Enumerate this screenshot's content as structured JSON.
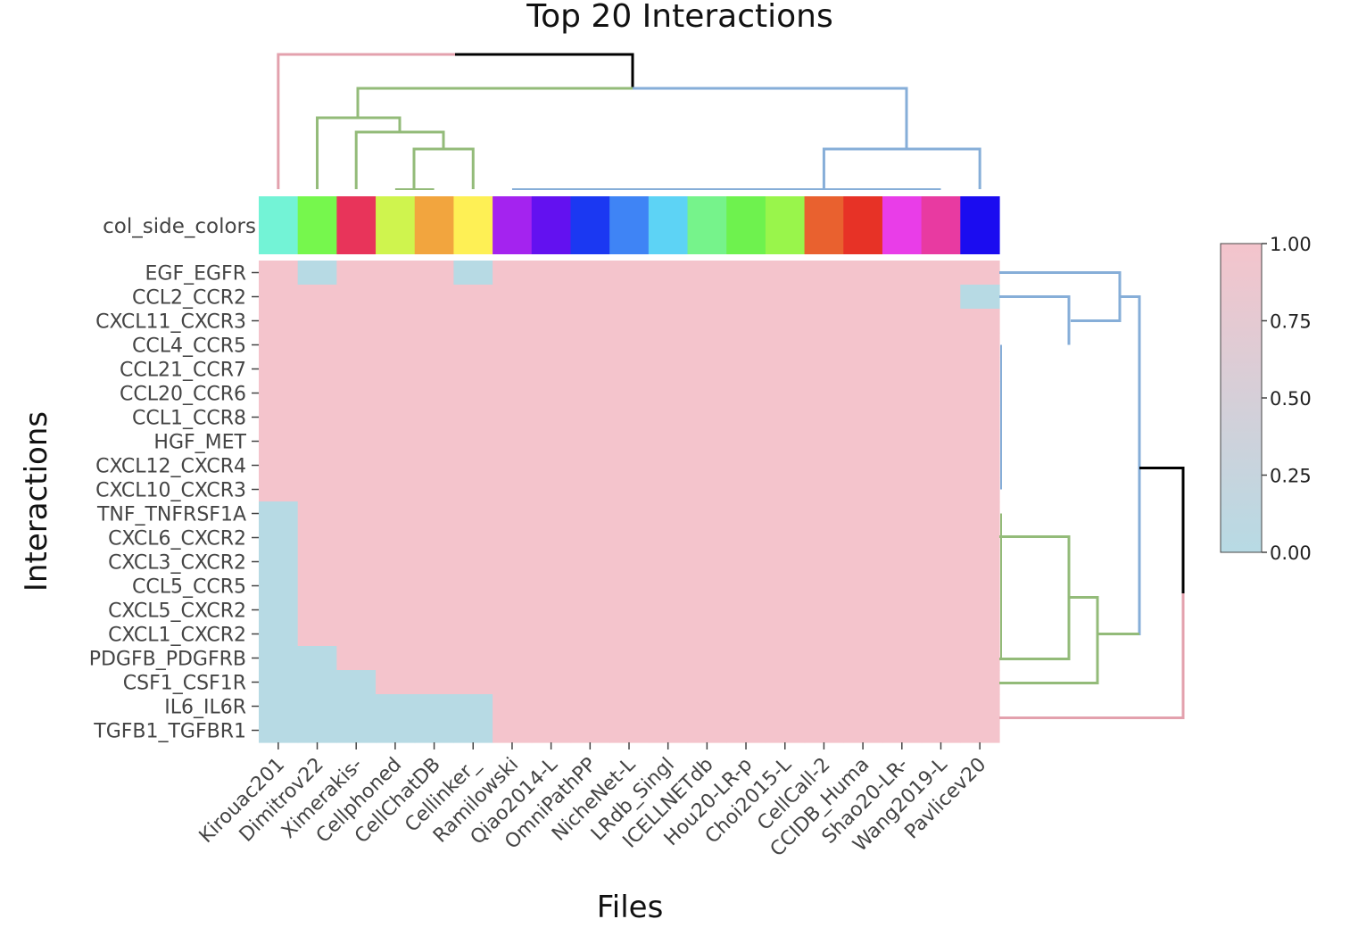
{
  "chart_data": {
    "type": "heatmap",
    "title": "Top 20 Interactions",
    "xlabel": "Files",
    "ylabel": "Interactions",
    "side_colors_label": "col_side_colors",
    "columns": [
      "Kirouac201",
      "Dimitrov22",
      "Ximerakis-",
      "Cellphoned",
      "CellChatDB",
      "Cellinker_",
      "Ramilowski",
      "Qiao2014-L",
      "OmniPathPP",
      "NicheNet-L",
      "LRdb_Singl",
      "ICELLNETdb",
      "Hou20-LR-p",
      "Choi2015-L",
      "CellCall-2",
      "CCIDB_Huma",
      "Shao20-LR-",
      "Wang2019-L",
      "Pavlicev20"
    ],
    "column_colors": [
      "#73f3d6",
      "#76f74d",
      "#e8345a",
      "#cff44e",
      "#f2a53e",
      "#fef055",
      "#a423ef",
      "#6311f0",
      "#1b38f2",
      "#3f84f5",
      "#5dd3f5",
      "#76f38b",
      "#6ef24e",
      "#99f54b",
      "#e9612f",
      "#e73226",
      "#e93de8",
      "#e83aa1",
      "#1b0cf0"
    ],
    "rows": [
      "EGF_EGFR",
      "CCL2_CCR2",
      "CXCL11_CXCR3",
      "CCL4_CCR5",
      "CCL21_CCR7",
      "CCL20_CCR6",
      "CCL1_CCR8",
      "HGF_MET",
      "CXCL12_CXCR4",
      "CXCL10_CXCR3",
      "TNF_TNFRSF1A",
      "CXCL6_CXCR2",
      "CXCL3_CXCR2",
      "CCL5_CCR5",
      "CXCL5_CXCR2",
      "CXCL1_CXCR2",
      "PDGFB_PDGFRB",
      "CSF1_CSF1R",
      "IL6_IL6R",
      "TGFB1_TGFBR1"
    ],
    "values": [
      [
        1,
        0,
        1,
        1,
        1,
        0,
        1,
        1,
        1,
        1,
        1,
        1,
        1,
        1,
        1,
        1,
        1,
        1,
        1
      ],
      [
        1,
        1,
        1,
        1,
        1,
        1,
        1,
        1,
        1,
        1,
        1,
        1,
        1,
        1,
        1,
        1,
        1,
        1,
        0
      ],
      [
        1,
        1,
        1,
        1,
        1,
        1,
        1,
        1,
        1,
        1,
        1,
        1,
        1,
        1,
        1,
        1,
        1,
        1,
        1
      ],
      [
        1,
        1,
        1,
        1,
        1,
        1,
        1,
        1,
        1,
        1,
        1,
        1,
        1,
        1,
        1,
        1,
        1,
        1,
        1
      ],
      [
        1,
        1,
        1,
        1,
        1,
        1,
        1,
        1,
        1,
        1,
        1,
        1,
        1,
        1,
        1,
        1,
        1,
        1,
        1
      ],
      [
        1,
        1,
        1,
        1,
        1,
        1,
        1,
        1,
        1,
        1,
        1,
        1,
        1,
        1,
        1,
        1,
        1,
        1,
        1
      ],
      [
        1,
        1,
        1,
        1,
        1,
        1,
        1,
        1,
        1,
        1,
        1,
        1,
        1,
        1,
        1,
        1,
        1,
        1,
        1
      ],
      [
        1,
        1,
        1,
        1,
        1,
        1,
        1,
        1,
        1,
        1,
        1,
        1,
        1,
        1,
        1,
        1,
        1,
        1,
        1
      ],
      [
        1,
        1,
        1,
        1,
        1,
        1,
        1,
        1,
        1,
        1,
        1,
        1,
        1,
        1,
        1,
        1,
        1,
        1,
        1
      ],
      [
        1,
        1,
        1,
        1,
        1,
        1,
        1,
        1,
        1,
        1,
        1,
        1,
        1,
        1,
        1,
        1,
        1,
        1,
        1
      ],
      [
        0,
        1,
        1,
        1,
        1,
        1,
        1,
        1,
        1,
        1,
        1,
        1,
        1,
        1,
        1,
        1,
        1,
        1,
        1
      ],
      [
        0,
        1,
        1,
        1,
        1,
        1,
        1,
        1,
        1,
        1,
        1,
        1,
        1,
        1,
        1,
        1,
        1,
        1,
        1
      ],
      [
        0,
        1,
        1,
        1,
        1,
        1,
        1,
        1,
        1,
        1,
        1,
        1,
        1,
        1,
        1,
        1,
        1,
        1,
        1
      ],
      [
        0,
        1,
        1,
        1,
        1,
        1,
        1,
        1,
        1,
        1,
        1,
        1,
        1,
        1,
        1,
        1,
        1,
        1,
        1
      ],
      [
        0,
        1,
        1,
        1,
        1,
        1,
        1,
        1,
        1,
        1,
        1,
        1,
        1,
        1,
        1,
        1,
        1,
        1,
        1
      ],
      [
        0,
        1,
        1,
        1,
        1,
        1,
        1,
        1,
        1,
        1,
        1,
        1,
        1,
        1,
        1,
        1,
        1,
        1,
        1
      ],
      [
        0,
        0,
        1,
        1,
        1,
        1,
        1,
        1,
        1,
        1,
        1,
        1,
        1,
        1,
        1,
        1,
        1,
        1,
        1
      ],
      [
        0,
        0,
        0,
        1,
        1,
        1,
        1,
        1,
        1,
        1,
        1,
        1,
        1,
        1,
        1,
        1,
        1,
        1,
        1
      ],
      [
        0,
        0,
        0,
        0,
        0,
        0,
        1,
        1,
        1,
        1,
        1,
        1,
        1,
        1,
        1,
        1,
        1,
        1,
        1
      ],
      [
        0,
        0,
        0,
        0,
        0,
        0,
        1,
        1,
        1,
        1,
        1,
        1,
        1,
        1,
        1,
        1,
        1,
        1,
        1
      ]
    ],
    "colorscale": {
      "low": "#b7dae4",
      "high": "#f4c4cc"
    },
    "colorbar": {
      "range": [
        0,
        1
      ],
      "ticks": [
        "0.00",
        "0.25",
        "0.50",
        "0.75",
        "1.00"
      ]
    },
    "dendrogram_colors": {
      "pink": "#e3a1ad",
      "green": "#93bb79",
      "blue": "#86aed8",
      "root": "#000000"
    }
  }
}
